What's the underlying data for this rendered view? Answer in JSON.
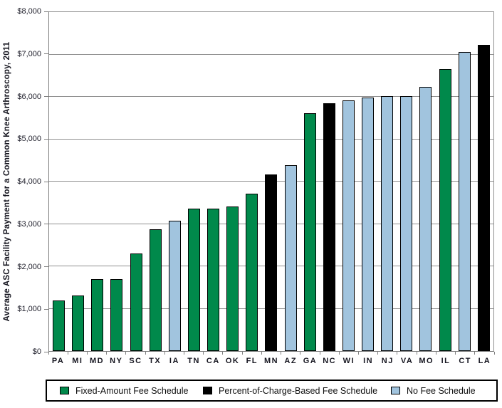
{
  "chart_data": {
    "type": "bar",
    "title": "",
    "ylabel": "Average ASC Facility Payment for a Common Knee Arthroscopy, 2011",
    "xlabel": "",
    "ylim": [
      0,
      8000
    ],
    "yticks": [
      0,
      1000,
      2000,
      3000,
      4000,
      5000,
      6000,
      7000,
      8000
    ],
    "ytick_labels": [
      "$0",
      "$1,000",
      "$2,000",
      "$3,000",
      "$4,000",
      "$5,000",
      "$6,000",
      "$7,000",
      "$8,000"
    ],
    "grid": "horizontal gridlines on",
    "legend_position": "bottom",
    "categories": [
      "PA",
      "MI",
      "MD",
      "NY",
      "SC",
      "TX",
      "IA",
      "TN",
      "CA",
      "OK",
      "FL",
      "MN",
      "AZ",
      "GA",
      "NC",
      "WI",
      "IN",
      "NJ",
      "VA",
      "MO",
      "IL",
      "CT",
      "LA"
    ],
    "values": [
      1190,
      1310,
      1690,
      1700,
      2310,
      2870,
      3080,
      3370,
      3370,
      3420,
      3710,
      4160,
      4390,
      5620,
      5850,
      5920,
      5990,
      6010,
      6010,
      6230,
      6650,
      7060,
      7230
    ],
    "bar_types": [
      "fixed",
      "fixed",
      "fixed",
      "fixed",
      "fixed",
      "fixed",
      "none",
      "fixed",
      "fixed",
      "fixed",
      "fixed",
      "percent",
      "none",
      "fixed",
      "percent",
      "none",
      "none",
      "none",
      "none",
      "none",
      "fixed",
      "none",
      "percent"
    ],
    "colors": {
      "fixed": "#00894B",
      "percent": "#000000",
      "none": "#A1C4DE"
    },
    "legend": [
      {
        "key": "fixed",
        "label": "Fixed-Amount Fee Schedule",
        "color": "#00894B"
      },
      {
        "key": "percent",
        "label": "Percent-of-Charge-Based Fee Schedule",
        "color": "#000000"
      },
      {
        "key": "none",
        "label": "No Fee Schedule",
        "color": "#A1C4DE"
      }
    ]
  }
}
